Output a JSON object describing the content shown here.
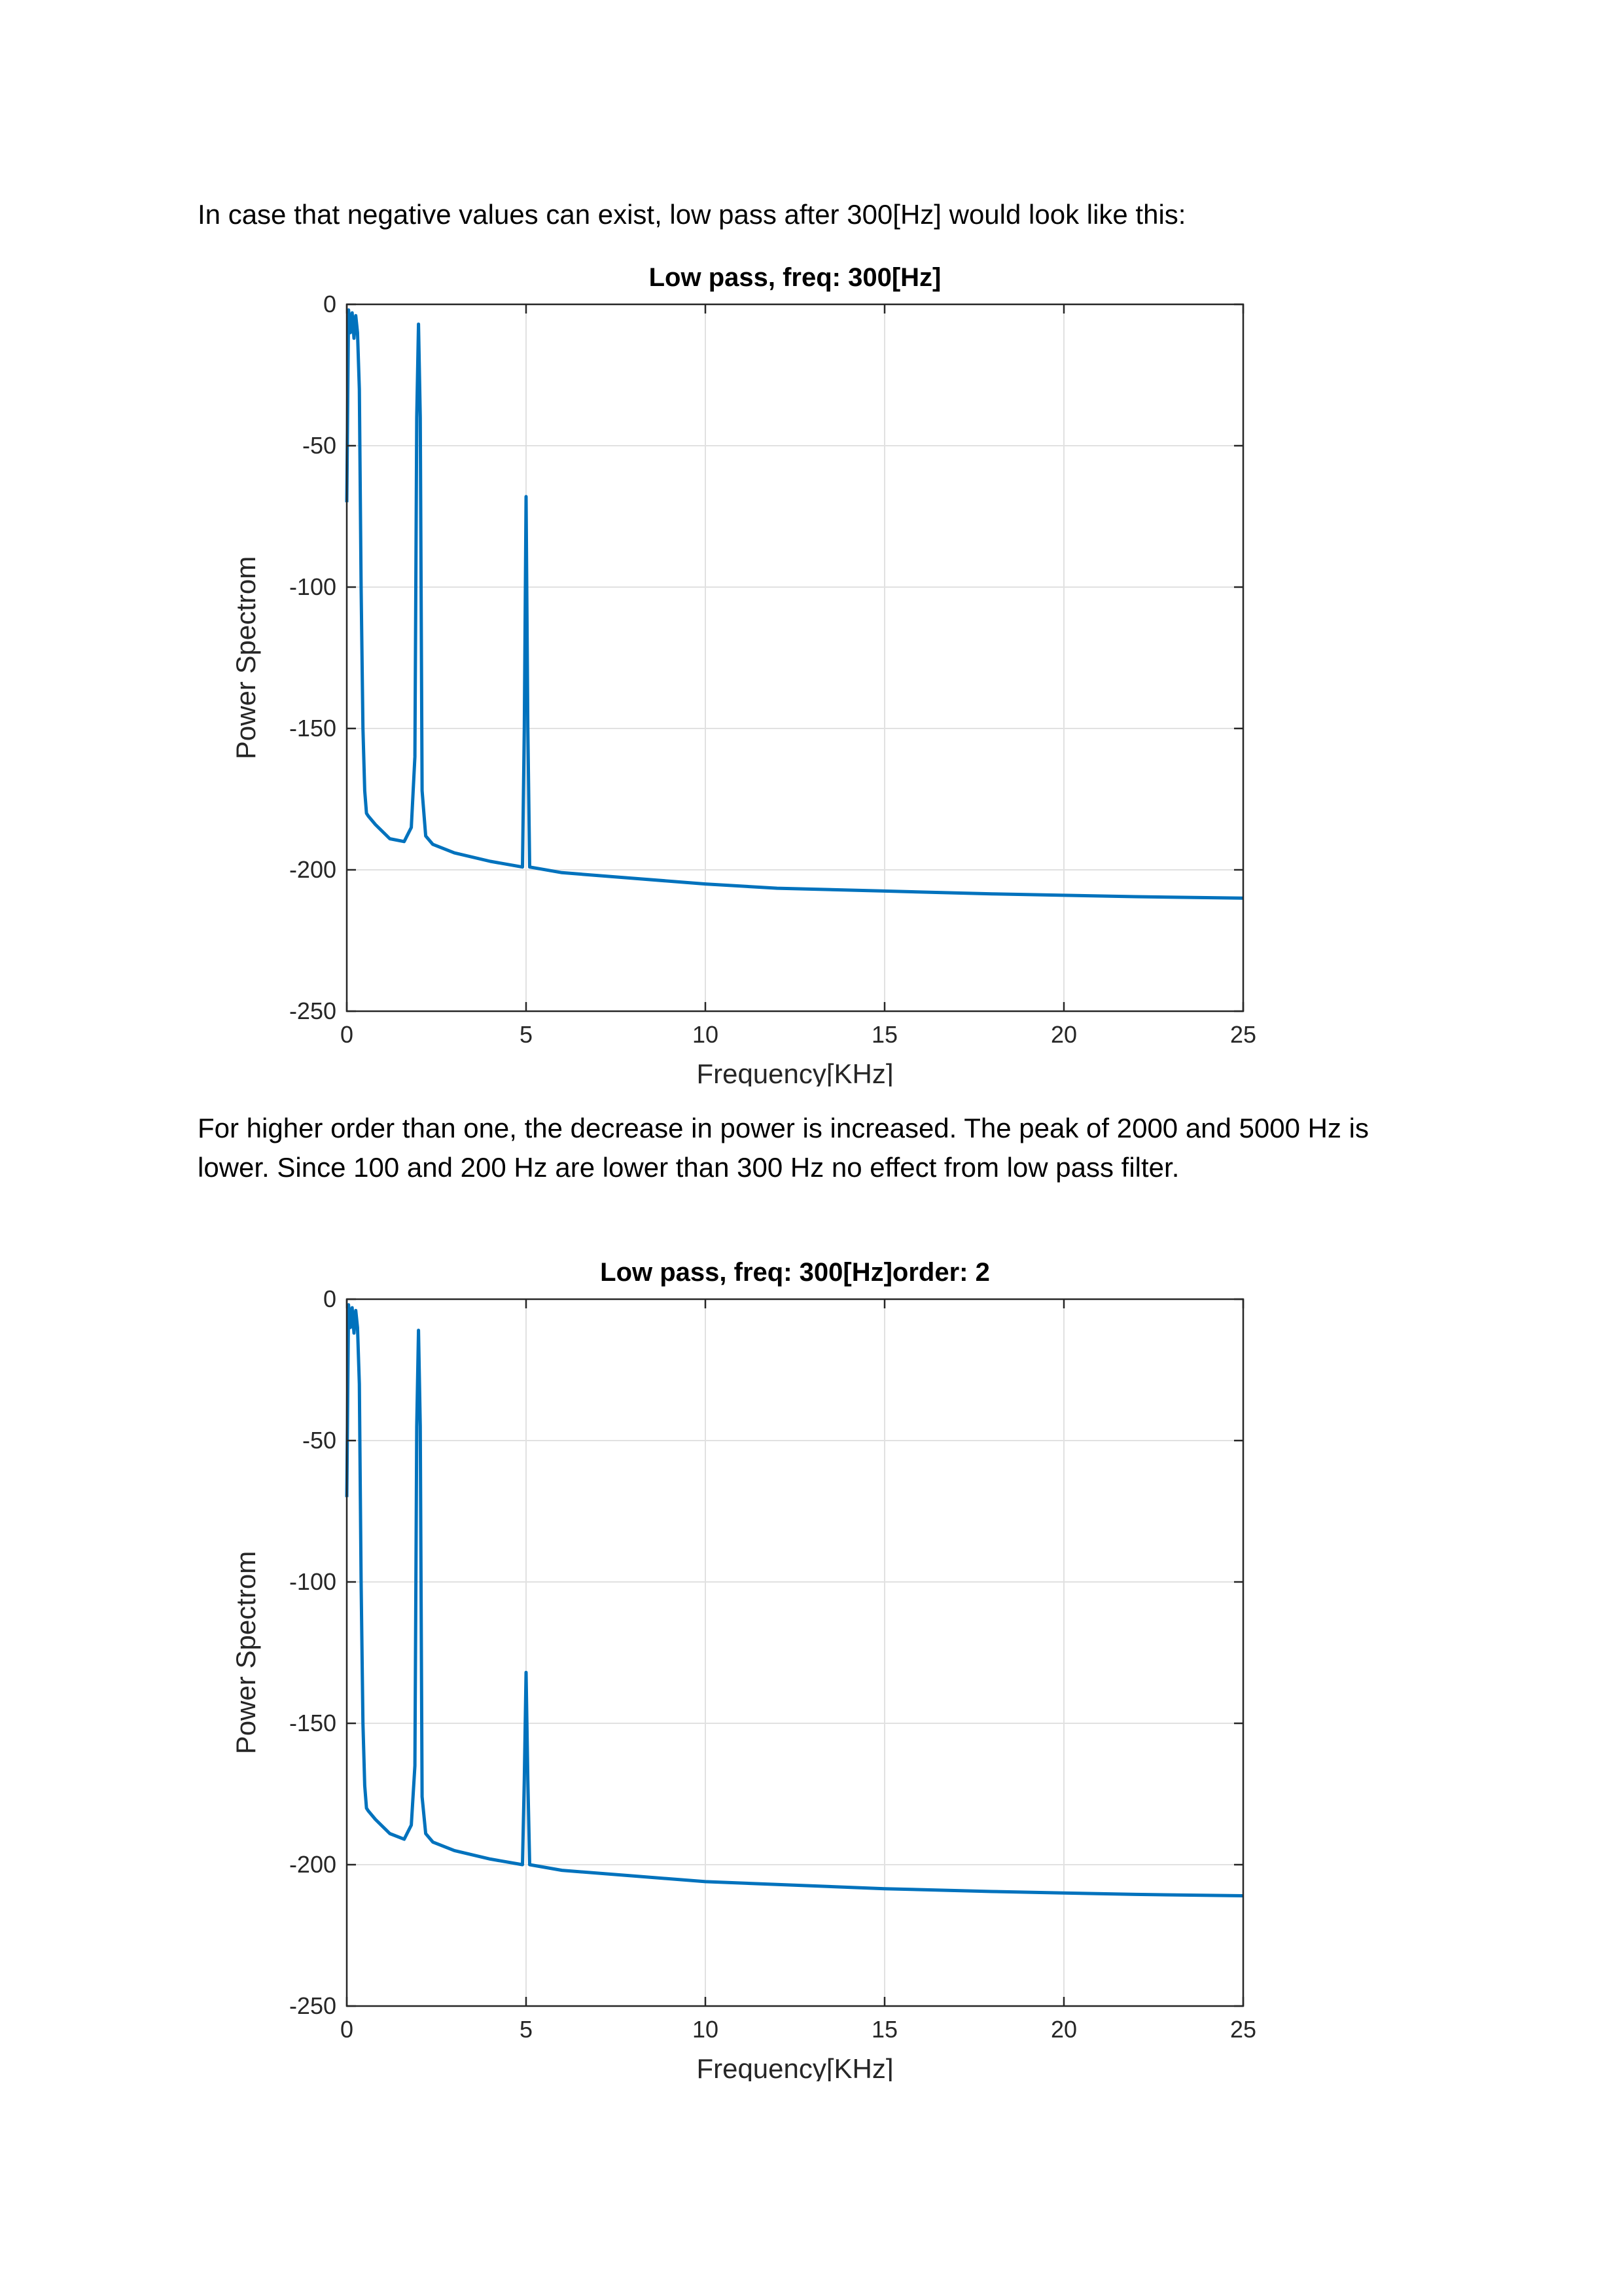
{
  "paragraphs": {
    "intro": "In case that negative values can exist, low pass after 300[Hz] would look like this:",
    "order_note": "For higher order than one, the decrease in power is increased. The peak of 2000 and 5000 Hz is lower. Since 100 and 200 Hz are lower than 300 Hz no effect from low pass filter."
  },
  "colors": {
    "line": "#0072BD",
    "grid": "#e1e1e1",
    "axis": "#262626"
  },
  "chart_data": [
    {
      "type": "line",
      "title": "Low pass, freq: 300[Hz]",
      "xlabel": "Frequency[KHz]",
      "ylabel": "Power Spectrom",
      "xlim": [
        0,
        25
      ],
      "ylim": [
        -250,
        0
      ],
      "xticks": [
        0,
        5,
        10,
        15,
        20,
        25
      ],
      "yticks": [
        0,
        -50,
        -100,
        -150,
        -200,
        -250
      ],
      "grid": true,
      "series": [
        {
          "x": [
            0,
            0.05,
            0.1,
            0.15,
            0.2,
            0.25,
            0.3,
            0.35,
            0.4,
            0.45,
            0.5,
            0.55,
            0.6,
            0.8,
            1.2,
            1.6,
            1.8,
            1.9,
            1.95,
            2.0,
            2.05,
            2.1,
            2.2,
            2.4,
            3.0,
            4.0,
            4.9,
            4.95,
            5.0,
            5.05,
            5.1,
            6,
            8,
            10,
            12,
            15,
            18,
            20,
            22,
            25
          ],
          "y": [
            -70,
            -2,
            -10,
            -3,
            -12,
            -4,
            -10,
            -30,
            -100,
            -150,
            -172,
            -180,
            -181,
            -184,
            -189,
            -190,
            -185,
            -160,
            -40,
            -7,
            -40,
            -172,
            -188,
            -191,
            -194,
            -197,
            -199,
            -150,
            -68,
            -150,
            -199,
            -201,
            -203,
            -205,
            -206.5,
            -207.5,
            -208.5,
            -209,
            -209.5,
            -210
          ]
        }
      ]
    },
    {
      "type": "line",
      "title": "Low pass, freq: 300[Hz]order: 2",
      "xlabel": "Frequency[KHz]",
      "ylabel": "Power Spectrom",
      "xlim": [
        0,
        25
      ],
      "ylim": [
        -250,
        0
      ],
      "xticks": [
        0,
        5,
        10,
        15,
        20,
        25
      ],
      "yticks": [
        0,
        -50,
        -100,
        -150,
        -200,
        -250
      ],
      "grid": true,
      "series": [
        {
          "x": [
            0,
            0.05,
            0.1,
            0.15,
            0.2,
            0.25,
            0.3,
            0.35,
            0.4,
            0.45,
            0.5,
            0.55,
            0.6,
            0.8,
            1.2,
            1.6,
            1.8,
            1.9,
            1.95,
            2.0,
            2.05,
            2.1,
            2.2,
            2.4,
            3.0,
            4.0,
            4.9,
            4.95,
            5.0,
            5.05,
            5.1,
            6,
            8,
            10,
            12,
            15,
            18,
            20,
            22,
            25
          ],
          "y": [
            -70,
            -2,
            -10,
            -3,
            -12,
            -4,
            -10,
            -30,
            -100,
            -150,
            -172,
            -180,
            -181,
            -184,
            -189,
            -191,
            -186,
            -165,
            -45,
            -11,
            -45,
            -176,
            -189,
            -192,
            -195,
            -198,
            -200,
            -170,
            -132,
            -170,
            -200,
            -202,
            -204,
            -206,
            -207,
            -208.5,
            -209.5,
            -210,
            -210.5,
            -211
          ]
        }
      ]
    }
  ]
}
